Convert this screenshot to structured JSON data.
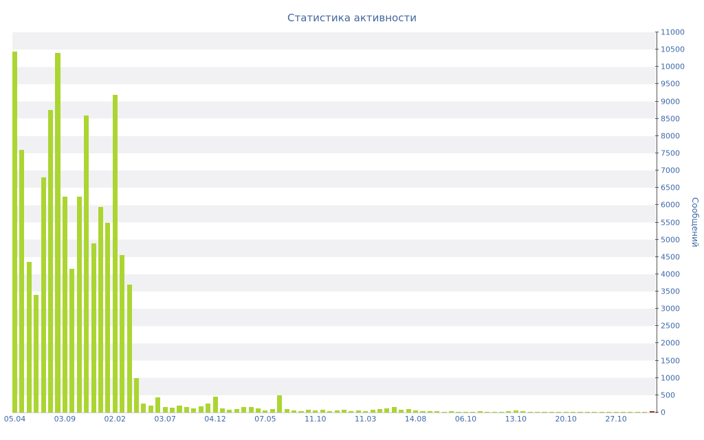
{
  "title": "Статистика активности",
  "chart_data": {
    "type": "bar",
    "title": "Статистика активности",
    "xlabel": "",
    "ylabel": "Сообщений",
    "ylim": [
      0,
      11000
    ],
    "y_tick_step": 500,
    "y_ticks": [
      0,
      500,
      1000,
      1500,
      2000,
      2500,
      3000,
      3500,
      4000,
      4500,
      5000,
      5500,
      6000,
      6500,
      7000,
      7500,
      8000,
      8500,
      9000,
      9500,
      10000,
      10500,
      11000
    ],
    "x_tick_labels": [
      {
        "text": "05.04",
        "bar_index": 0
      },
      {
        "text": "03.09",
        "bar_index": 7
      },
      {
        "text": "02.02",
        "bar_index": 14
      },
      {
        "text": "03.07",
        "bar_index": 21
      },
      {
        "text": "04.12",
        "bar_index": 28
      },
      {
        "text": "07.05",
        "bar_index": 35
      },
      {
        "text": "11.10",
        "bar_index": 42
      },
      {
        "text": "11.03",
        "bar_index": 49
      },
      {
        "text": "14.08",
        "bar_index": 56
      },
      {
        "text": "06.10",
        "bar_index": 63
      },
      {
        "text": "13.10",
        "bar_index": 70
      },
      {
        "text": "20.10",
        "bar_index": 77
      },
      {
        "text": "27.10",
        "bar_index": 84
      }
    ],
    "values": [
      10450,
      7600,
      4350,
      3400,
      6800,
      8750,
      10400,
      6250,
      4150,
      6250,
      8600,
      4900,
      5950,
      5500,
      9200,
      4550,
      3700,
      1000,
      260,
      190,
      430,
      160,
      140,
      200,
      150,
      120,
      180,
      250,
      460,
      120,
      70,
      100,
      160,
      150,
      110,
      60,
      90,
      500,
      90,
      60,
      50,
      70,
      60,
      80,
      50,
      60,
      80,
      50,
      60,
      50,
      70,
      90,
      110,
      150,
      80,
      100,
      60,
      40,
      50,
      40,
      30,
      40,
      30,
      30,
      20,
      40,
      30,
      20,
      30,
      40,
      60,
      40,
      30,
      20,
      30,
      20,
      20,
      30,
      20,
      20,
      30,
      20,
      20,
      30,
      20,
      20,
      30,
      20,
      20,
      50
    ],
    "last_bar_highlighted": true,
    "legend": "none",
    "grid": "horizontal-stripes",
    "colors": {
      "bar": "#abd531",
      "last_bar": "#a03a28",
      "title_text": "#44679e",
      "axis_text": "#3e68a8",
      "axis_line": "#565656",
      "stripe": "#f1f1f4",
      "background": "#ffffff"
    }
  }
}
